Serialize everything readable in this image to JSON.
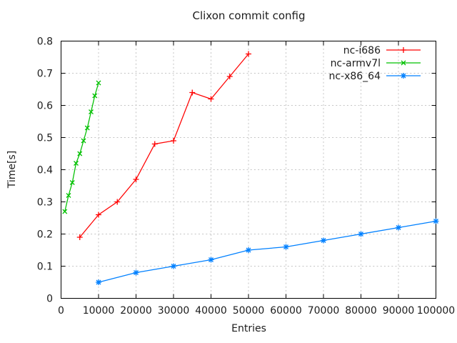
{
  "title": "Clixon commit config",
  "chart_data": {
    "type": "line",
    "title": "Clixon commit config",
    "xlabel": "Entries",
    "ylabel": "Time[s]",
    "xlim": [
      0,
      100000
    ],
    "ylim": [
      0,
      0.8
    ],
    "x_ticks": [
      0,
      10000,
      20000,
      30000,
      40000,
      50000,
      60000,
      70000,
      80000,
      90000,
      100000
    ],
    "y_ticks": [
      0,
      0.1,
      0.2,
      0.3,
      0.4,
      0.5,
      0.6,
      0.7,
      0.8
    ],
    "grid": true,
    "legend_position": "top-right-inside",
    "series": [
      {
        "name": "nc-i686",
        "color": "#ff0000",
        "marker": "plus",
        "x": [
          5000,
          10000,
          15000,
          20000,
          25000,
          30000,
          35000,
          40000,
          45000,
          50000
        ],
        "y": [
          0.19,
          0.26,
          0.3,
          0.37,
          0.48,
          0.49,
          0.64,
          0.62,
          0.69,
          0.76
        ]
      },
      {
        "name": "nc-armv7l",
        "color": "#00c000",
        "marker": "cross",
        "x": [
          1000,
          2000,
          3000,
          4000,
          5000,
          6000,
          7000,
          8000,
          9000,
          10000
        ],
        "y": [
          0.27,
          0.32,
          0.36,
          0.42,
          0.45,
          0.49,
          0.53,
          0.58,
          0.63,
          0.67
        ]
      },
      {
        "name": "nc-x86_64",
        "color": "#0080ff",
        "marker": "star",
        "x": [
          10000,
          20000,
          30000,
          40000,
          50000,
          60000,
          70000,
          80000,
          90000,
          100000
        ],
        "y": [
          0.05,
          0.08,
          0.1,
          0.12,
          0.15,
          0.16,
          0.18,
          0.2,
          0.22,
          0.24
        ]
      }
    ]
  },
  "colors": {
    "background": "#ffffff",
    "border": "#000000",
    "grid": "#c4c4c4",
    "text": "#1c1c1c"
  }
}
